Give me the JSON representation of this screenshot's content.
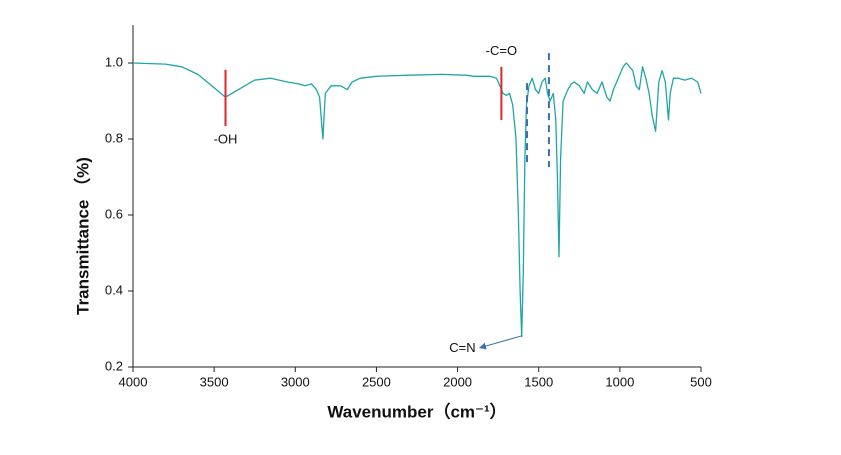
{
  "chart_data": {
    "type": "line",
    "x_label": "Wavenumber（cm⁻¹）",
    "y_label": "Transmittance （%)",
    "color": "#1fa5a8",
    "x": [
      4000,
      3800,
      3700,
      3600,
      3500,
      3430,
      3350,
      3250,
      3150,
      3050,
      2980,
      2940,
      2900,
      2870,
      2850,
      2830,
      2815,
      2780,
      2720,
      2680,
      2650,
      2600,
      2500,
      2300,
      2100,
      1950,
      1900,
      1800,
      1760,
      1740,
      1720,
      1700,
      1680,
      1660,
      1640,
      1625,
      1615,
      1605,
      1595,
      1585,
      1575,
      1560,
      1540,
      1520,
      1500,
      1480,
      1460,
      1445,
      1430,
      1410,
      1395,
      1385,
      1375,
      1365,
      1350,
      1320,
      1300,
      1280,
      1250,
      1220,
      1200,
      1170,
      1140,
      1110,
      1080,
      1060,
      1040,
      1000,
      980,
      960,
      940,
      920,
      900,
      880,
      860,
      840,
      820,
      800,
      780,
      760,
      740,
      720,
      700,
      690,
      670,
      640,
      600,
      560,
      520,
      500
    ],
    "values": [
      1.0,
      0.997,
      0.99,
      0.97,
      0.935,
      0.91,
      0.93,
      0.955,
      0.96,
      0.95,
      0.945,
      0.94,
      0.945,
      0.93,
      0.91,
      0.8,
      0.92,
      0.94,
      0.94,
      0.93,
      0.95,
      0.96,
      0.965,
      0.968,
      0.97,
      0.968,
      0.965,
      0.965,
      0.96,
      0.94,
      0.92,
      0.915,
      0.92,
      0.89,
      0.8,
      0.6,
      0.4,
      0.28,
      0.45,
      0.75,
      0.89,
      0.94,
      0.96,
      0.93,
      0.92,
      0.95,
      0.96,
      0.92,
      0.9,
      0.92,
      0.85,
      0.7,
      0.49,
      0.75,
      0.9,
      0.93,
      0.945,
      0.95,
      0.94,
      0.92,
      0.95,
      0.93,
      0.92,
      0.95,
      0.91,
      0.9,
      0.93,
      0.97,
      0.99,
      1.0,
      0.99,
      0.98,
      0.94,
      0.93,
      0.99,
      0.96,
      0.92,
      0.86,
      0.82,
      0.95,
      0.98,
      0.95,
      0.85,
      0.92,
      0.96,
      0.96,
      0.955,
      0.96,
      0.95,
      0.92
    ],
    "xlim": [
      4000,
      500
    ],
    "xticks": [
      4000,
      3500,
      3000,
      2500,
      2000,
      1500,
      1000,
      500
    ],
    "ylim": [
      0.2,
      1.1
    ],
    "yticks": [
      0.2,
      0.4,
      0.6,
      0.8,
      {
        "value": 1,
        "label": "1.0"
      }
    ],
    "annotations": [
      {
        "text": "-OH",
        "x": 3430,
        "y": [
          0.982,
          0.834
        ],
        "color": "#e0262b",
        "style": "solid"
      },
      {
        "text": "-C=O",
        "x": 1730,
        "y": [
          0.99,
          0.85
        ],
        "color": "#e0262b",
        "style": "solid"
      },
      {
        "text": "C=N",
        "x": 1605,
        "y": [
          0.29,
          0.29
        ],
        "color": "#3a6fb0",
        "style": "arrow"
      }
    ],
    "markers": [
      {
        "x": 1572,
        "y": [
          0.947,
          0.726
        ],
        "color": "#3a6fb0",
        "style": "dashed"
      },
      {
        "x": 1437,
        "y": [
          1.026,
          0.726
        ],
        "color": "#3a6fb0",
        "style": "dashed"
      }
    ]
  }
}
